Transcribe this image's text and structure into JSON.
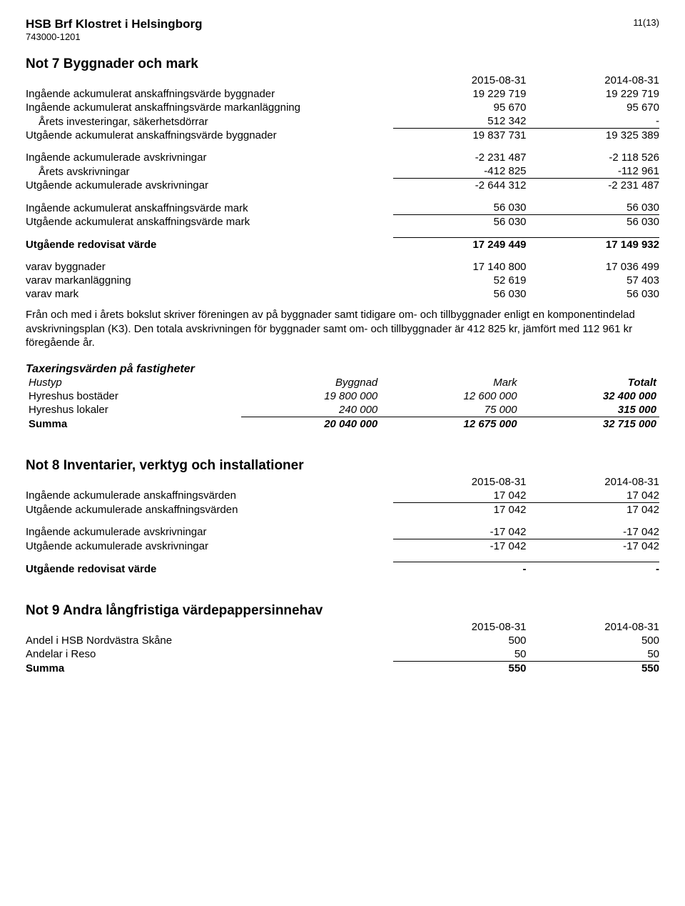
{
  "header": {
    "org_name": "HSB Brf Klostret i Helsingborg",
    "org_id": "743000-1201",
    "page_num": "11(13)"
  },
  "note7": {
    "title": "Not 7  Byggnader och mark",
    "col1": "2015-08-31",
    "col2": "2014-08-31",
    "rows": {
      "r1": {
        "label": "Ingående ackumulerat anskaffningsvärde byggnader",
        "v1": "19 229 719",
        "v2": "19 229 719"
      },
      "r2": {
        "label": "Ingående ackumulerat anskaffningsvärde markanläggning",
        "v1": "95 670",
        "v2": "95 670"
      },
      "r3": {
        "label": "Årets investeringar, säkerhetsdörrar",
        "v1": "512 342",
        "v2": "-"
      },
      "r4": {
        "label": "Utgående ackumulerat anskaffningsvärde byggnader",
        "v1": "19 837 731",
        "v2": "19 325 389"
      },
      "r5": {
        "label": "Ingående ackumulerade avskrivningar",
        "v1": "-2 231 487",
        "v2": "-2 118 526"
      },
      "r6": {
        "label": "Årets avskrivningar",
        "v1": "-412 825",
        "v2": "-112 961"
      },
      "r7": {
        "label": "Utgående ackumulerade avskrivningar",
        "v1": "-2 644 312",
        "v2": "-2 231 487"
      },
      "r8": {
        "label": "Ingående ackumulerat anskaffningsvärde mark",
        "v1": "56 030",
        "v2": "56 030"
      },
      "r9": {
        "label": "Utgående ackumulerat anskaffningsvärde mark",
        "v1": "56 030",
        "v2": "56 030"
      },
      "r10": {
        "label": "Utgående redovisat värde",
        "v1": "17 249 449",
        "v2": "17 149 932"
      },
      "r11": {
        "label": "varav byggnader",
        "v1": "17 140 800",
        "v2": "17 036 499"
      },
      "r12": {
        "label": "varav markanläggning",
        "v1": "52 619",
        "v2": "57 403"
      },
      "r13": {
        "label": "varav mark",
        "v1": "56 030",
        "v2": "56 030"
      }
    },
    "body_text": "Från och med i årets bokslut skriver föreningen av på byggnader samt tidigare om- och tillbyggnader enligt en komponentindelad avskrivningsplan (K3). Den totala avskrivningen för byggnader samt om- och tillbyggnader är 412 825 kr, jämfört med 112 961 kr föregående år."
  },
  "tax": {
    "heading": "Taxeringsvärden på fastigheter",
    "h_hustyp": "Hustyp",
    "h_byggnad": "Byggnad",
    "h_mark": "Mark",
    "h_totalt": "Totalt",
    "r1": {
      "label": "Hyreshus bostäder",
      "v1": "19 800 000",
      "v2": "12 600 000",
      "v3": "32 400 000"
    },
    "r2": {
      "label": "Hyreshus lokaler",
      "v1": "240 000",
      "v2": "75 000",
      "v3": "315 000"
    },
    "sum": {
      "label": "Summa",
      "v1": "20 040 000",
      "v2": "12 675 000",
      "v3": "32 715 000"
    }
  },
  "note8": {
    "title": "Not 8  Inventarier, verktyg och installationer",
    "col1": "2015-08-31",
    "col2": "2014-08-31",
    "r1": {
      "label": "Ingående ackumulerade anskaffningsvärden",
      "v1": "17 042",
      "v2": "17 042"
    },
    "r2": {
      "label": "Utgående ackumulerade anskaffningsvärden",
      "v1": "17 042",
      "v2": "17 042"
    },
    "r3": {
      "label": "Ingående ackumulerade avskrivningar",
      "v1": "-17 042",
      "v2": "-17 042"
    },
    "r4": {
      "label": "Utgående ackumulerade avskrivningar",
      "v1": "-17 042",
      "v2": "-17 042"
    },
    "r5": {
      "label": "Utgående redovisat värde",
      "v1": "-",
      "v2": "-"
    }
  },
  "note9": {
    "title": "Not 9  Andra långfristiga värdepappersinnehav",
    "col1": "2015-08-31",
    "col2": "2014-08-31",
    "r1": {
      "label": "Andel i HSB Nordvästra Skåne",
      "v1": "500",
      "v2": "500"
    },
    "r2": {
      "label": "Andelar i Reso",
      "v1": "50",
      "v2": "50"
    },
    "sum": {
      "label": "Summa",
      "v1": "550",
      "v2": "550"
    }
  }
}
